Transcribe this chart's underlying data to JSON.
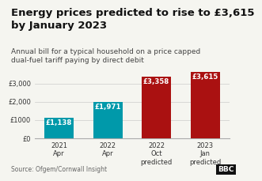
{
  "title_line1": "Energy prices predicted to rise to £3,615",
  "title_line2": "by January 2023",
  "subtitle": "Annual bill for a typical household on a price capped\ndual-fuel tariff paying by direct debit",
  "source": "Source: Ofgem/Cornwall Insight",
  "categories": [
    "2021\nApr",
    "2022\nApr",
    "2022\nOct\npredicted",
    "2023\nJan\npredicted"
  ],
  "values": [
    1138,
    1971,
    3358,
    3615
  ],
  "bar_colors": [
    "#0099AA",
    "#0099AA",
    "#AA1111",
    "#AA1111"
  ],
  "bar_labels": [
    "£1,138",
    "£1,971",
    "£3,358",
    "£3,615"
  ],
  "yticks": [
    0,
    1000,
    2000,
    3000
  ],
  "ytick_labels": [
    "£0",
    "£1000",
    "£2,000",
    "£3,000"
  ],
  "ylim": [
    0,
    4000
  ],
  "background_color": "#f5f5f0",
  "title_fontsize": 9.5,
  "subtitle_fontsize": 6.5,
  "source_fontsize": 5.5,
  "label_fontsize": 6.2,
  "tick_fontsize": 6.0,
  "bbc_logo_text": "BBC"
}
